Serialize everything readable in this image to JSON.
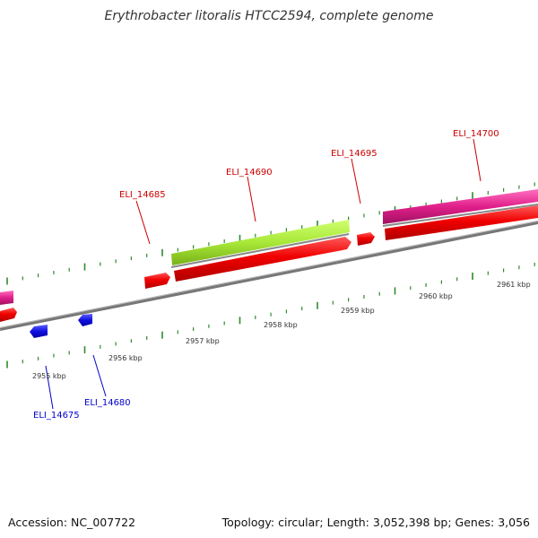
{
  "title": "Erythrobacter litoralis HTCC2594, complete genome",
  "footer": {
    "accession": "Accession: NC_007722",
    "summary": "Topology: circular; Length: 3,052,398 bp; Genes: 3,056"
  },
  "colors": {
    "forward_gene": "#e00000",
    "forward_gene_outline": "#ff6060",
    "reverse_gene": "#1010e0",
    "rRNA_pink": "#e0208a",
    "green_feature": "#a8e838",
    "backbone": "#777777",
    "tick": "#2e8b2e",
    "label_forward": "#cc0000",
    "label_reverse": "#0000cc"
  },
  "scale_labels": [
    "2955 kbp",
    "2956 kbp",
    "2957 kbp",
    "2958 kbp",
    "2959 kbp",
    "2960 kbp",
    "2961 kbp"
  ],
  "gene_labels": {
    "forward": [
      "ELI_14685",
      "ELI_14690",
      "ELI_14695",
      "ELI_14700"
    ],
    "reverse": [
      "ELI_14675",
      "ELI_14680"
    ]
  }
}
